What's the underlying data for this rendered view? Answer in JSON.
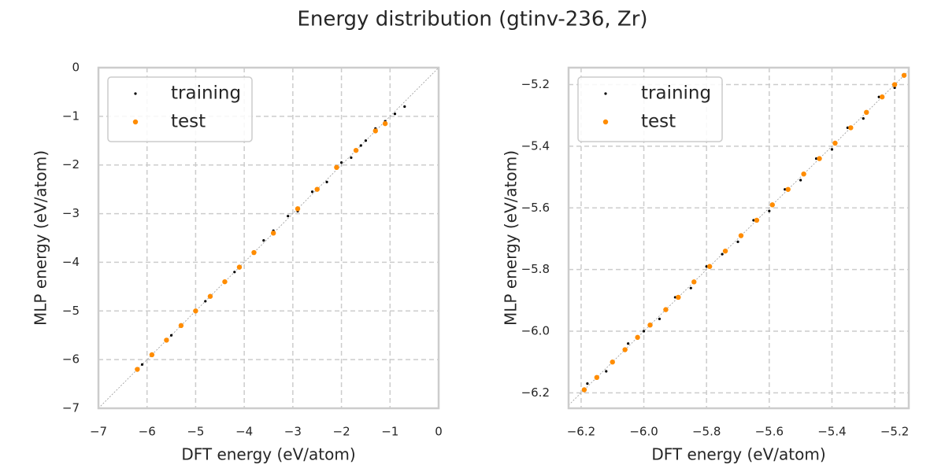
{
  "title": "Energy distribution (gtinv-236, Zr)",
  "chart_data": [
    {
      "type": "scatter",
      "xlabel": "DFT energy (eV/atom)",
      "ylabel": "MLP energy (eV/atom)",
      "xlim": [
        -7,
        0
      ],
      "ylim": [
        -7,
        0
      ],
      "xticks": [
        {
          "value": -7,
          "label": "−7"
        },
        {
          "value": -6,
          "label": "−6"
        },
        {
          "value": -5,
          "label": "−5"
        },
        {
          "value": -4,
          "label": "−4"
        },
        {
          "value": -3,
          "label": "−3"
        },
        {
          "value": -2,
          "label": "−2"
        },
        {
          "value": -1,
          "label": "−1"
        },
        0
      ],
      "yticks": [
        {
          "value": -7,
          "label": "−7"
        },
        {
          "value": -6,
          "label": "−6"
        },
        {
          "value": -5,
          "label": "−5"
        },
        {
          "value": -4,
          "label": "−4"
        },
        {
          "value": -3,
          "label": "−3"
        },
        {
          "value": -2,
          "label": "−2"
        },
        {
          "value": -1,
          "label": "−1"
        },
        0
      ],
      "grid": true,
      "legend": "upper left",
      "diagonal": true,
      "series": [
        {
          "name": "training",
          "color": "#000000",
          "x": [
            -6.1,
            -5.5,
            -4.8,
            -4.2,
            -3.6,
            -3.4,
            -3.1,
            -2.9,
            -2.6,
            -2.3,
            -2.0,
            -1.8,
            -1.6,
            -1.5,
            -1.3,
            -1.1,
            -0.9,
            -0.7
          ],
          "values": [
            -6.1,
            -5.5,
            -4.8,
            -4.2,
            -3.55,
            -3.35,
            -3.05,
            -2.95,
            -2.55,
            -2.35,
            -1.95,
            -1.85,
            -1.6,
            -1.5,
            -1.25,
            -1.1,
            -0.95,
            -0.8
          ]
        },
        {
          "name": "test",
          "color": "#ff8c00",
          "x": [
            -6.2,
            -5.9,
            -5.6,
            -5.3,
            -5.0,
            -4.7,
            -4.4,
            -4.1,
            -3.8,
            -3.4,
            -2.9,
            -2.5,
            -2.1,
            -1.7,
            -1.3,
            -1.1
          ],
          "values": [
            -6.2,
            -5.9,
            -5.6,
            -5.3,
            -5.0,
            -4.7,
            -4.4,
            -4.1,
            -3.8,
            -3.4,
            -2.9,
            -2.5,
            -2.05,
            -1.7,
            -1.3,
            -1.15
          ]
        }
      ]
    },
    {
      "type": "scatter",
      "xlabel": "DFT energy (eV/atom)",
      "ylabel": "MLP energy (eV/atom)",
      "xlim": [
        -6.24,
        -5.155
      ],
      "ylim": [
        -6.25,
        -5.145
      ],
      "xticks": [
        {
          "value": -6.2,
          "label": "−6.2"
        },
        {
          "value": -6.0,
          "label": "−6.0"
        },
        {
          "value": -5.8,
          "label": "−5.8"
        },
        {
          "value": -5.6,
          "label": "−5.6"
        },
        {
          "value": -5.4,
          "label": "−5.4"
        },
        {
          "value": -5.2,
          "label": "−5.2"
        }
      ],
      "yticks": [
        {
          "value": -6.2,
          "label": "−6.2"
        },
        {
          "value": -6.0,
          "label": "−6.0"
        },
        {
          "value": -5.8,
          "label": "−5.8"
        },
        {
          "value": -5.6,
          "label": "−5.6"
        },
        {
          "value": -5.4,
          "label": "−5.4"
        },
        {
          "value": -5.2,
          "label": "−5.2"
        }
      ],
      "grid": true,
      "legend": "upper left",
      "diagonal": true,
      "series": [
        {
          "name": "training",
          "color": "#000000",
          "x": [
            -6.18,
            -6.12,
            -6.05,
            -6.0,
            -5.95,
            -5.9,
            -5.85,
            -5.8,
            -5.75,
            -5.7,
            -5.65,
            -5.6,
            -5.55,
            -5.5,
            -5.45,
            -5.4,
            -5.35,
            -5.3,
            -5.25,
            -5.2,
            -5.17
          ],
          "values": [
            -6.17,
            -6.13,
            -6.04,
            -6.0,
            -5.96,
            -5.89,
            -5.86,
            -5.79,
            -5.75,
            -5.71,
            -5.64,
            -5.61,
            -5.54,
            -5.51,
            -5.44,
            -5.41,
            -5.34,
            -5.31,
            -5.24,
            -5.21,
            -5.17
          ]
        },
        {
          "name": "test",
          "color": "#ff8c00",
          "x": [
            -6.19,
            -6.15,
            -6.1,
            -6.06,
            -6.02,
            -5.98,
            -5.93,
            -5.89,
            -5.84,
            -5.79,
            -5.74,
            -5.69,
            -5.64,
            -5.59,
            -5.54,
            -5.49,
            -5.44,
            -5.39,
            -5.34,
            -5.29,
            -5.24,
            -5.2,
            -5.17
          ],
          "values": [
            -6.19,
            -6.15,
            -6.1,
            -6.06,
            -6.02,
            -5.98,
            -5.93,
            -5.89,
            -5.84,
            -5.79,
            -5.74,
            -5.69,
            -5.64,
            -5.59,
            -5.54,
            -5.49,
            -5.44,
            -5.39,
            -5.34,
            -5.29,
            -5.24,
            -5.2,
            -5.17
          ]
        }
      ]
    }
  ]
}
